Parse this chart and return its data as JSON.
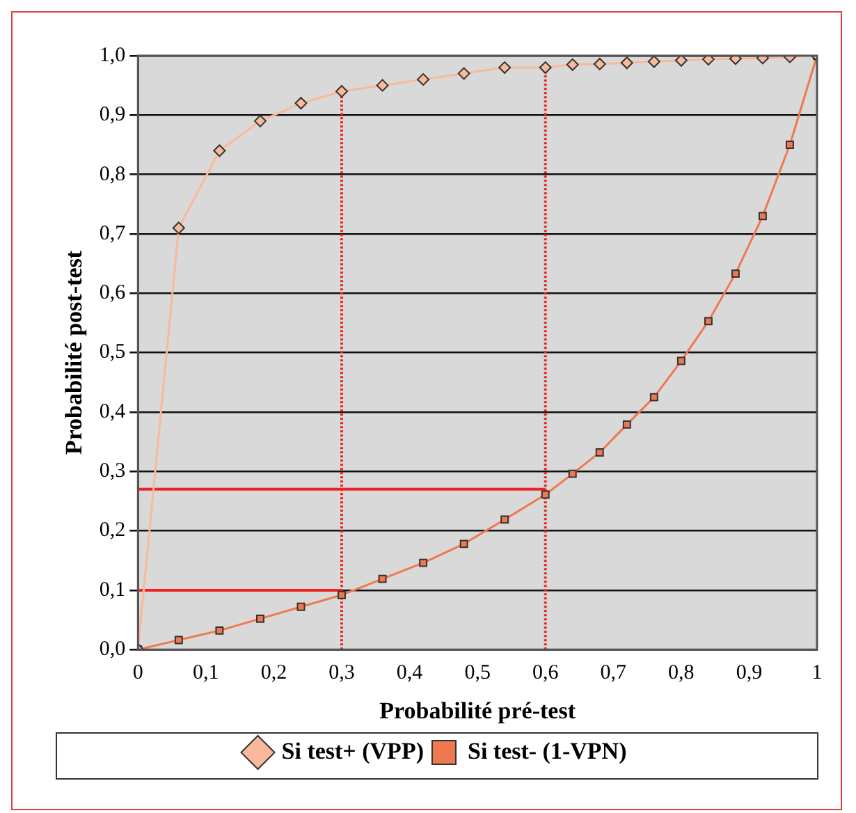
{
  "chart_data": {
    "type": "line",
    "xlabel": "Probabilité pré-test",
    "ylabel": "Probabilité post-test",
    "x": [
      0,
      0.06,
      0.12,
      0.18,
      0.24,
      0.3,
      0.36,
      0.42,
      0.48,
      0.54,
      0.6,
      0.64,
      0.68,
      0.72,
      0.76,
      0.8,
      0.84,
      0.88,
      0.92,
      0.96,
      1
    ],
    "series": [
      {
        "name": "Si test+ (VPP)",
        "color": "#f9b99a",
        "marker": "diamond",
        "values": [
          0,
          0.71,
          0.84,
          0.89,
          0.92,
          0.94,
          0.95,
          0.96,
          0.97,
          0.98,
          0.98,
          0.985,
          0.986,
          0.988,
          0.99,
          0.992,
          0.994,
          0.995,
          0.996,
          0.998,
          1
        ]
      },
      {
        "name": "Si test- (1-VPN)",
        "color": "#f07850",
        "marker": "square",
        "values": [
          0,
          0.016,
          0.032,
          0.052,
          0.072,
          0.092,
          0.119,
          0.146,
          0.178,
          0.219,
          0.261,
          0.296,
          0.332,
          0.379,
          0.425,
          0.486,
          0.553,
          0.633,
          0.73,
          0.85,
          1
        ]
      },
      {
        "color": "#ee2222",
        "marker": "none",
        "x": [
          0,
          0.3
        ],
        "values": [
          0.1,
          0.1
        ]
      },
      {
        "color": "#ee2222",
        "marker": "none",
        "x": [
          0,
          0.6
        ],
        "values": [
          0.27,
          0.27
        ]
      },
      {
        "color": "#ee2222",
        "marker": "none",
        "line_style": "dotted",
        "x": [
          0.3,
          0.3
        ],
        "values": [
          0,
          0.94
        ]
      },
      {
        "color": "#ee2222",
        "marker": "none",
        "line_style": "dotted",
        "x": [
          0.6,
          0.6
        ],
        "values": [
          0,
          0.98
        ]
      }
    ],
    "xlim": [
      0,
      1
    ],
    "xticks": [
      0,
      {
        "value": 0.1,
        "label": "0,1"
      },
      {
        "value": 0.2,
        "label": "0,2"
      },
      {
        "value": 0.3,
        "label": "0,3"
      },
      {
        "value": 0.4,
        "label": "0,4"
      },
      {
        "value": 0.5,
        "label": "0,5"
      },
      {
        "value": 0.6,
        "label": "0,6"
      },
      {
        "value": 0.7,
        "label": "0,7"
      },
      {
        "value": 0.8,
        "label": "0,8"
      },
      {
        "value": 0.9,
        "label": "0,9"
      },
      1
    ],
    "ylim": [
      0,
      1
    ],
    "yticks": [
      {
        "value": 0,
        "label": "0,0"
      },
      {
        "value": 0.1,
        "label": "0,1"
      },
      {
        "value": 0.2,
        "label": "0,2"
      },
      {
        "value": 0.3,
        "label": "0,3"
      },
      {
        "value": 0.4,
        "label": "0,4"
      },
      {
        "value": 0.5,
        "label": "0,5"
      },
      {
        "value": 0.6,
        "label": "0,6"
      },
      {
        "value": 0.7,
        "label": "0,7"
      },
      {
        "value": 0.8,
        "label": "0,8"
      },
      {
        "value": 0.9,
        "label": "0,9"
      },
      {
        "value": 1,
        "label": "1,0"
      }
    ],
    "grid": "y",
    "legend": "bottom"
  }
}
